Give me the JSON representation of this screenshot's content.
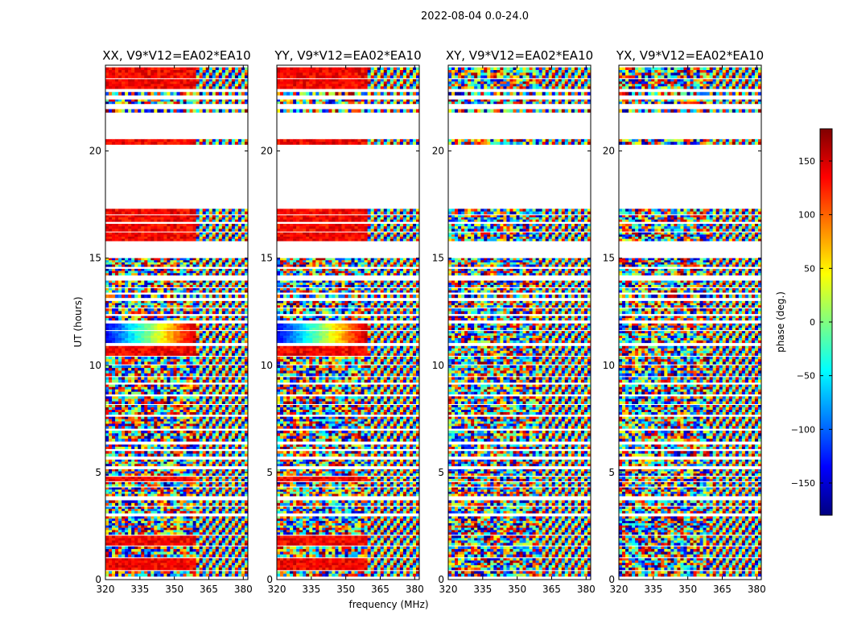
{
  "suptitle": "2022-08-04 0.0-24.0",
  "chart_data": {
    "type": "heatmap",
    "xlabel": "frequency (MHz)",
    "ylabel": "UT (hours)",
    "xlim": [
      320,
      382
    ],
    "ylim": [
      0,
      24
    ],
    "xticks": [
      320,
      335,
      350,
      365,
      380
    ],
    "yticks": [
      0,
      5,
      10,
      15,
      20
    ],
    "panels": [
      {
        "id": "xx",
        "title": "XX, V9*V12=EA02*EA10"
      },
      {
        "id": "yy",
        "title": "YY, V9*V12=EA02*EA10"
      },
      {
        "id": "xy",
        "title": "XY, V9*V12=EA02*EA10"
      },
      {
        "id": "yx",
        "title": "YX, V9*V12=EA02*EA10"
      }
    ],
    "colorbar": {
      "label": "phase (deg.)",
      "range": [
        -180,
        180
      ],
      "ticks": [
        -150,
        -100,
        -50,
        0,
        50,
        100,
        150
      ],
      "colormap": "jet"
    },
    "data_segments_ut": [
      [
        0.15,
        0.4
      ],
      [
        0.45,
        1.0
      ],
      [
        1.05,
        1.55
      ],
      [
        1.6,
        2.05
      ],
      [
        2.1,
        2.95
      ],
      [
        3.1,
        3.4
      ],
      [
        3.45,
        3.7
      ],
      [
        3.9,
        4.3
      ],
      [
        4.35,
        4.55
      ],
      [
        4.6,
        4.8
      ],
      [
        4.85,
        5.15
      ],
      [
        5.3,
        5.6
      ],
      [
        5.75,
        6.0
      ],
      [
        6.1,
        6.3
      ],
      [
        6.45,
        6.95
      ],
      [
        7.05,
        7.6
      ],
      [
        7.7,
        8.15
      ],
      [
        8.2,
        8.55
      ],
      [
        8.65,
        9.1
      ],
      [
        9.2,
        9.45
      ],
      [
        9.5,
        10.0
      ],
      [
        10.05,
        10.4
      ],
      [
        10.45,
        10.9
      ],
      [
        11.05,
        11.6
      ],
      [
        11.65,
        11.95
      ],
      [
        12.1,
        12.3
      ],
      [
        12.4,
        12.65
      ],
      [
        12.7,
        13.0
      ],
      [
        13.15,
        13.3
      ],
      [
        13.4,
        13.6
      ],
      [
        13.65,
        13.95
      ],
      [
        14.2,
        14.5
      ],
      [
        14.6,
        15.0
      ],
      [
        15.8,
        16.2
      ],
      [
        16.25,
        16.6
      ],
      [
        16.7,
        17.0
      ],
      [
        17.05,
        17.3
      ],
      [
        20.3,
        20.55
      ],
      [
        21.8,
        21.95
      ],
      [
        22.2,
        22.4
      ],
      [
        22.6,
        22.75
      ],
      [
        22.9,
        23.35
      ],
      [
        23.4,
        23.9
      ]
    ],
    "coherent_segments": {
      "xx": [
        [
          0.45,
          1.0
        ],
        [
          1.6,
          2.05
        ],
        [
          4.6,
          4.8
        ],
        [
          10.45,
          10.9
        ],
        [
          11.05,
          11.95
        ],
        [
          15.8,
          17.3
        ],
        [
          20.3,
          20.55
        ],
        [
          22.9,
          23.9
        ]
      ],
      "yy": [
        [
          0.45,
          1.0
        ],
        [
          1.6,
          2.05
        ],
        [
          4.6,
          4.8
        ],
        [
          10.45,
          10.9
        ],
        [
          11.05,
          11.95
        ],
        [
          15.8,
          17.3
        ],
        [
          20.3,
          20.55
        ],
        [
          22.9,
          23.9
        ]
      ],
      "xy": [],
      "yx": []
    }
  }
}
